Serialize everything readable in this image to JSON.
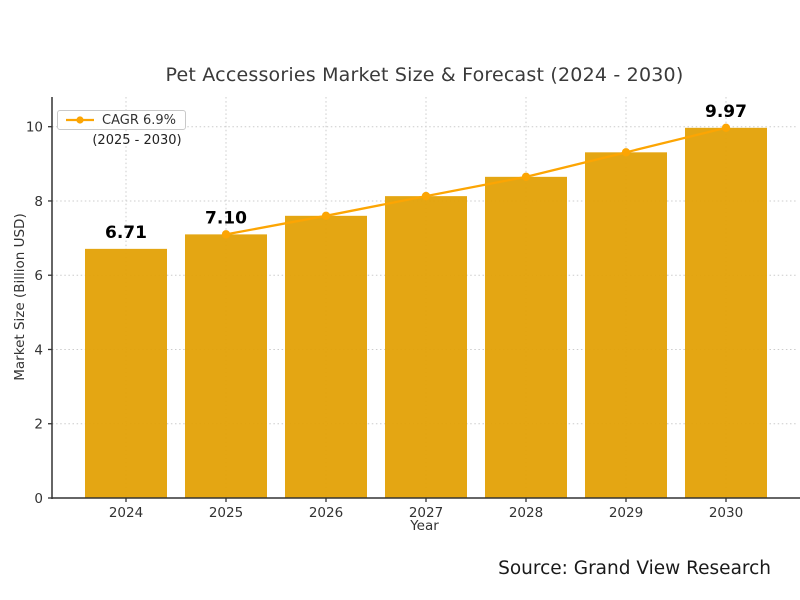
{
  "source": "Source: Grand View Research",
  "chart_data": {
    "type": "bar+line",
    "title": "Pet Accessories Market Size & Forecast (2024 - 2030)",
    "xlabel": "Year",
    "ylabel": "Market Size (Billion USD)",
    "categories": [
      "2024",
      "2025",
      "2026",
      "2027",
      "2028",
      "2029",
      "2030"
    ],
    "bar_series": {
      "name": "Market Size (Billion USD)",
      "values": [
        6.71,
        7.1,
        7.6,
        8.13,
        8.65,
        9.31,
        9.97
      ]
    },
    "line_series": {
      "name": "CAGR trend",
      "x": [
        "2025",
        "2026",
        "2027",
        "2028",
        "2029",
        "2030"
      ],
      "values": [
        7.1,
        7.6,
        8.13,
        8.65,
        9.31,
        9.97
      ]
    },
    "value_labels": [
      {
        "category": "2024",
        "text": "6.71"
      },
      {
        "category": "2025",
        "text": "7.10"
      },
      {
        "category": "2030",
        "text": "9.97"
      }
    ],
    "yticks": [
      0,
      2,
      4,
      6,
      8,
      10
    ],
    "ylim": [
      0,
      10.8
    ],
    "grid": "dotted, horizontal and vertical",
    "legend": {
      "label": "CAGR 6.9%",
      "sublabel": "(2025 - 2030)",
      "position": "upper left"
    },
    "colors": {
      "bar": "#E3A106",
      "line": "#FCA503",
      "title_text": "#3a3a3a",
      "axis_text": "#333333",
      "value_label_text": "#000000",
      "gridline": "#cccccc"
    }
  }
}
